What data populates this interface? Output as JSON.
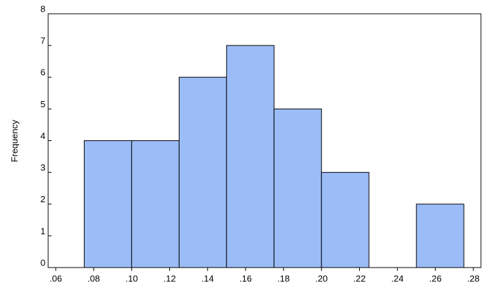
{
  "chart_data": {
    "type": "histogram",
    "y_label": "Frequency",
    "bins": [
      0.075,
      0.1,
      0.125,
      0.15,
      0.175,
      0.2,
      0.225,
      0.25,
      0.275
    ],
    "values": [
      4,
      4,
      6,
      7,
      5,
      3,
      0,
      2
    ],
    "color": "#9bbcf7",
    "edge_color": "#000000",
    "xlim": [
      0.056,
      0.284
    ],
    "xticks": [
      {
        "value": 0.06,
        "label": ".06"
      },
      {
        "value": 0.08,
        "label": ".08"
      },
      {
        "value": 0.1,
        "label": ".10"
      },
      {
        "value": 0.12,
        "label": ".12"
      },
      {
        "value": 0.14,
        "label": ".14"
      },
      {
        "value": 0.16,
        "label": ".16"
      },
      {
        "value": 0.18,
        "label": ".18"
      },
      {
        "value": 0.2,
        "label": ".20"
      },
      {
        "value": 0.22,
        "label": ".22"
      },
      {
        "value": 0.24,
        "label": ".24"
      },
      {
        "value": 0.26,
        "label": ".26"
      },
      {
        "value": 0.28,
        "label": ".28"
      }
    ],
    "ylim": [
      0,
      8
    ],
    "yticks": [
      0,
      1,
      2,
      3,
      4,
      5,
      6,
      7,
      8
    ]
  }
}
